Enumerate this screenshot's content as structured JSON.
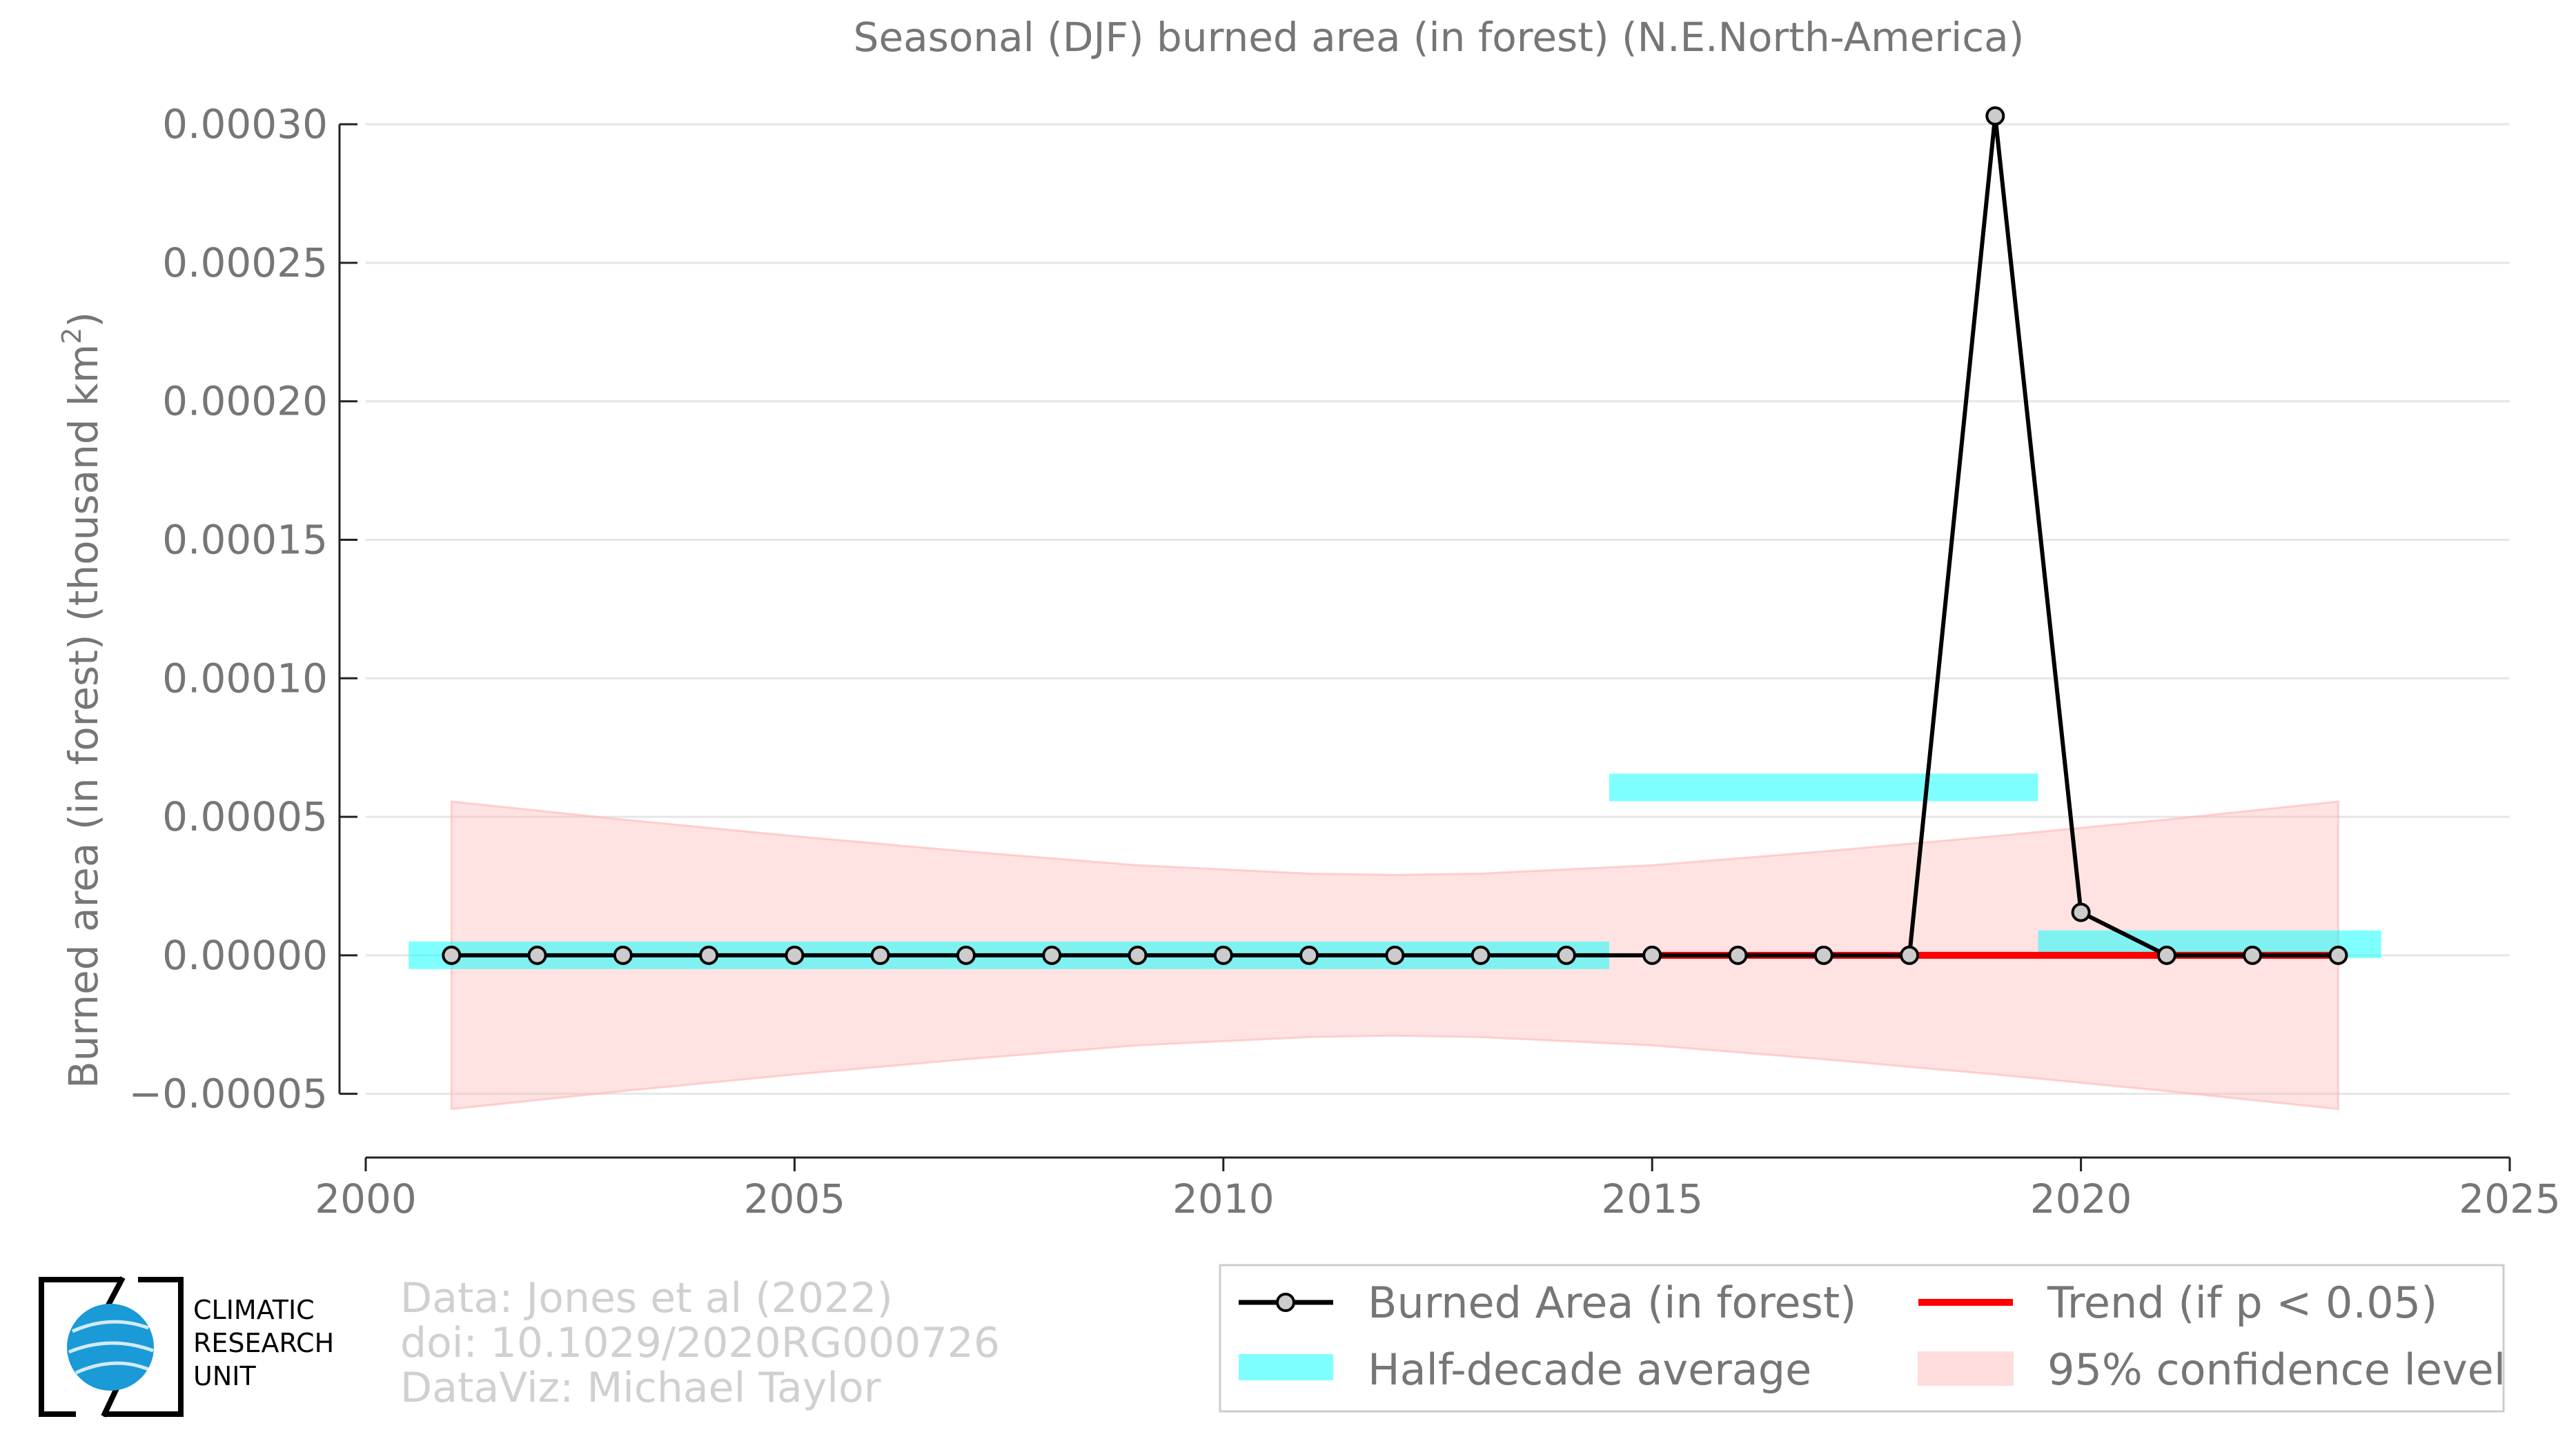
{
  "chart_data": {
    "type": "line",
    "title": "Seasonal (DJF) burned area (in forest) (N.E.North-America)",
    "ylabel_main": "Burned area (in forest) (thousand km",
    "ylabel_sup": "2",
    "ylabel_close": ")",
    "xlabel": "",
    "xlim": [
      2000,
      2025
    ],
    "ylim": [
      -7.3e-05,
      0.00031
    ],
    "grid": true,
    "x_ticks": [
      2000,
      2005,
      2010,
      2015,
      2020,
      2025
    ],
    "x_tick_labels": [
      "2000",
      "2005",
      "2010",
      "2015",
      "2020",
      "2025"
    ],
    "y_ticks": [
      -5e-05,
      0.0,
      5e-05,
      0.0001,
      0.00015,
      0.0002,
      0.00025,
      0.0003
    ],
    "y_tick_labels": [
      "−0.00005",
      "0.00000",
      "0.00005",
      "0.00010",
      "0.00015",
      "0.00020",
      "0.00025",
      "0.00030"
    ],
    "series": [
      {
        "name": "Burned Area (in forest)",
        "color": "#000000",
        "x": [
          2001,
          2002,
          2003,
          2004,
          2005,
          2006,
          2007,
          2008,
          2009,
          2010,
          2011,
          2012,
          2013,
          2014,
          2015,
          2016,
          2017,
          2018,
          2019,
          2020,
          2021,
          2022,
          2023
        ],
        "y": [
          0,
          0,
          0,
          0,
          0,
          0,
          0,
          0,
          0,
          0,
          0,
          0,
          0,
          0,
          0,
          0,
          0,
          0,
          0.000303,
          1.55e-05,
          0,
          0,
          0
        ]
      },
      {
        "name": "Trend (if p < 0.05)",
        "color": "#ff0000",
        "x": [
          2015,
          2023
        ],
        "y": [
          0,
          0
        ]
      }
    ],
    "half_decade_average": {
      "name": "Half-decade average",
      "color": "#00ffff",
      "bars": [
        {
          "x_start": 2000.5,
          "x_end": 2014.5,
          "y": 0.0
        },
        {
          "x_start": 2014.5,
          "x_end": 2019.5,
          "y": 6.06e-05
        },
        {
          "x_start": 2019.5,
          "x_end": 2023.5,
          "y": 4e-06
        }
      ]
    },
    "confidence_band": {
      "name": "95% confidence level",
      "color": "#ffb6b6",
      "x": [
        2001,
        2003,
        2005,
        2007,
        2009,
        2011,
        2012,
        2013,
        2015,
        2017,
        2019,
        2021,
        2023
      ],
      "upper": [
        5.55e-05,
        4.9e-05,
        4.3e-05,
        3.75e-05,
        3.25e-05,
        2.95e-05,
        2.9e-05,
        2.95e-05,
        3.25e-05,
        3.75e-05,
        4.3e-05,
        4.9e-05,
        5.55e-05
      ],
      "lower": [
        -5.55e-05,
        -4.9e-05,
        -4.3e-05,
        -3.75e-05,
        -3.25e-05,
        -2.95e-05,
        -2.9e-05,
        -2.95e-05,
        -3.25e-05,
        -3.75e-05,
        -4.3e-05,
        -4.9e-05,
        -5.55e-05
      ]
    },
    "legend_position": "bottom-right"
  },
  "legend": {
    "burned_area": "Burned Area (in forest)",
    "trend": "Trend (if p < 0.05)",
    "half_decade": "Half-decade average",
    "confidence": "95% confidence level"
  },
  "credits": {
    "line1": "Data: Jones et al (2022)",
    "line2": "doi: 10.1029/2020RG000726",
    "line3": "DataViz: Michael Taylor"
  },
  "logo": {
    "line1": "CLIMATIC",
    "line2": "RESEARCH",
    "line3": "UNIT"
  }
}
